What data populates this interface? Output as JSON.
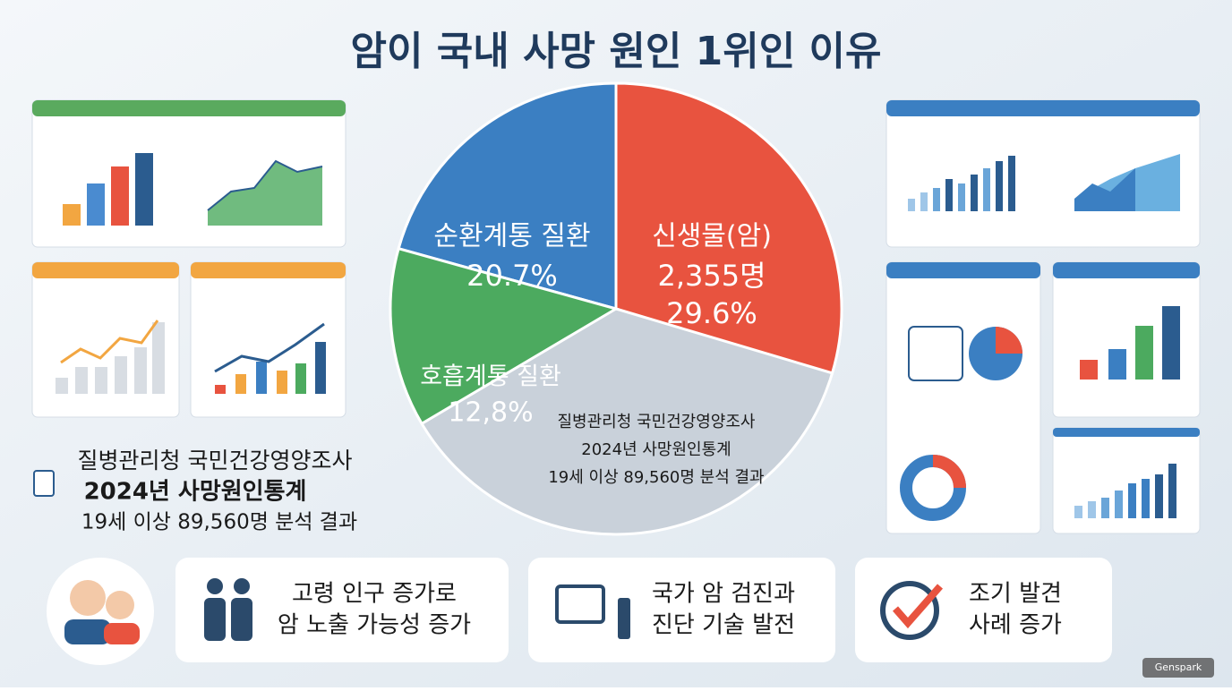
{
  "title": "암이 국내 사망 원인 1위인 이유",
  "chart_data": {
    "type": "pie",
    "categories": [
      "순환계통 질환",
      "신생물(암)",
      "호흡계통 질환"
    ],
    "values": [
      20.7,
      29.6,
      12.8
    ],
    "value_labels": [
      "20.7%",
      "29.6%",
      "12,8%"
    ],
    "colors": [
      "#3b7fc2",
      "#e8533f",
      "#4caa5f"
    ],
    "annotation": "2,355명",
    "note": [
      "질병관리청 국민건강영양조사",
      "2024년 사망원인통계",
      "19세 이상 89,560명 분석 결과"
    ]
  },
  "source": [
    "질병관리청 국민건강영양조사",
    "2024년 사망원인통계",
    "19세 이상 89,560명 분석 결과"
  ],
  "cards": [
    [
      "고령 인구 증가로",
      "암 노출 가능성 증가"
    ],
    [
      "국가 암 검진과",
      "진단 기술 발전"
    ],
    [
      "조기 발견",
      "사례 증가"
    ]
  ],
  "watermark": "Genspark"
}
